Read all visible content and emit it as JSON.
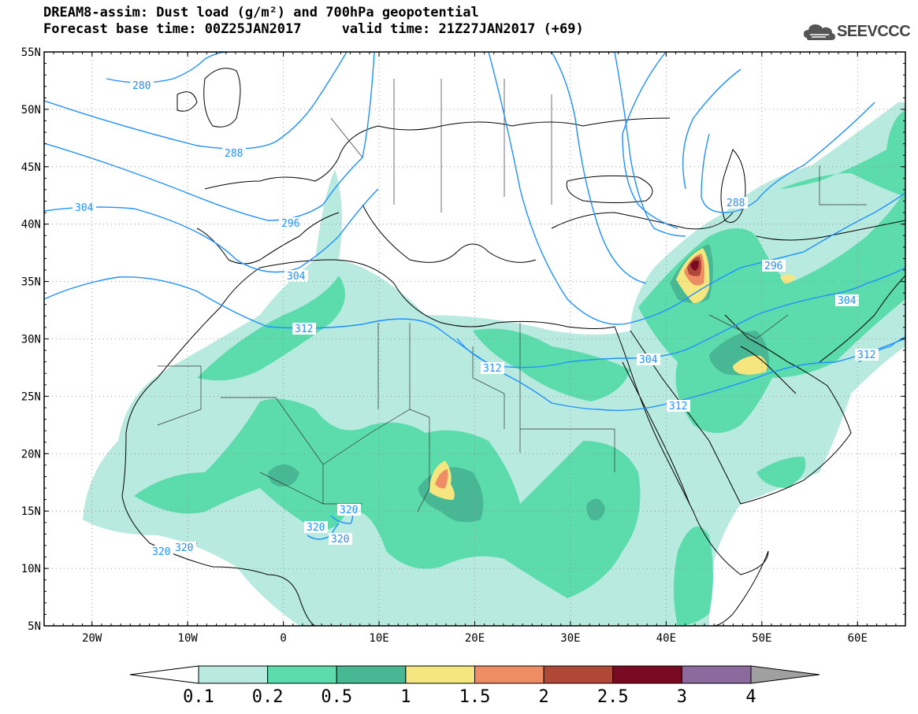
{
  "header": {
    "title_line1": "DREAM8-assim: Dust load (g/m²) and 700hPa geopotential",
    "title_line2": "Forecast base time: 00Z25JAN2017     valid time: 21Z27JAN2017 (+69)",
    "logo_text": "SEEVCCC"
  },
  "axes": {
    "lat_labels": [
      "55N",
      "50N",
      "45N",
      "40N",
      "35N",
      "30N",
      "25N",
      "20N",
      "15N",
      "10N",
      "5N"
    ],
    "lon_labels": [
      "20W",
      "10W",
      "0",
      "10E",
      "20E",
      "30E",
      "40E",
      "50E",
      "60E"
    ]
  },
  "geopotential_contours": {
    "color": "#1e90ff",
    "labels": [
      "280",
      "288",
      "296",
      "304",
      "312",
      "320",
      "288",
      "296",
      "304",
      "312",
      "304",
      "312",
      "312",
      "320",
      "320",
      "320",
      "320"
    ]
  },
  "colorbar": {
    "tick_labels": [
      "0.1",
      "0.2",
      "0.5",
      "1",
      "1.5",
      "2",
      "2.5",
      "3",
      "4"
    ],
    "colors": [
      "#ffffff",
      "#b8eadf",
      "#5cdcac",
      "#48b894",
      "#f5e680",
      "#ee8c64",
      "#b04838",
      "#7a0a22",
      "#8c6a9e",
      "#a0a0a0"
    ]
  }
}
